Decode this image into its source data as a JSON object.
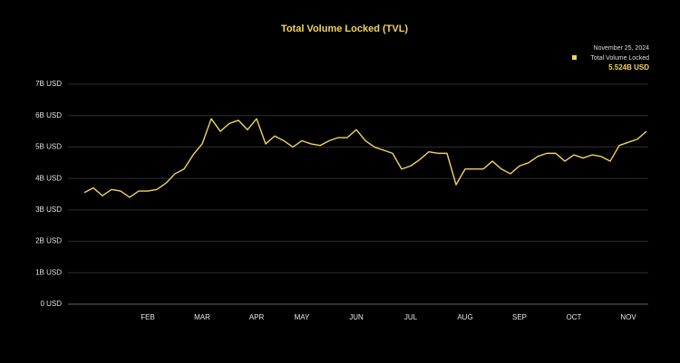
{
  "chart_data": {
    "type": "line",
    "title": "Total Volume Locked (TVL)",
    "legend_date": "November 25, 2024",
    "legend_value": "5.524B USD",
    "categories": [
      null,
      null,
      null,
      null,
      null,
      null,
      null,
      "FEB",
      null,
      null,
      null,
      null,
      null,
      "MAR",
      null,
      null,
      null,
      null,
      null,
      "APR",
      null,
      null,
      null,
      null,
      "MAY",
      null,
      null,
      null,
      null,
      null,
      "JUN",
      null,
      null,
      null,
      null,
      null,
      "JUL",
      null,
      null,
      null,
      null,
      null,
      "AUG",
      null,
      null,
      null,
      null,
      null,
      "SEP",
      null,
      null,
      null,
      null,
      null,
      "OCT",
      null,
      null,
      null,
      null,
      null,
      "NOV",
      null,
      null
    ],
    "series": [
      {
        "name": "Total Volume Locked",
        "color": "#f2d45c",
        "values": [
          3.55,
          3.7,
          3.45,
          3.65,
          3.6,
          3.4,
          3.6,
          3.6,
          3.65,
          3.85,
          4.15,
          4.3,
          4.75,
          5.1,
          5.9,
          5.5,
          5.75,
          5.85,
          5.55,
          5.9,
          5.1,
          5.35,
          5.2,
          5.0,
          5.2,
          5.1,
          5.05,
          5.2,
          5.3,
          5.3,
          5.55,
          5.2,
          5.0,
          4.9,
          4.8,
          4.3,
          4.4,
          4.6,
          4.85,
          4.8,
          4.8,
          3.8,
          4.3,
          4.3,
          4.3,
          4.55,
          4.3,
          4.15,
          4.4,
          4.5,
          4.7,
          4.8,
          4.8,
          4.55,
          4.75,
          4.65,
          4.75,
          4.7,
          4.55,
          5.05,
          5.15,
          5.25,
          5.5
        ]
      }
    ],
    "ylim": [
      0,
      7
    ],
    "yticks": [
      {
        "value": 0,
        "label": "0 USD"
      },
      {
        "value": 1,
        "label": "1B USD"
      },
      {
        "value": 2,
        "label": "2B USD"
      },
      {
        "value": 3,
        "label": "3B USD"
      },
      {
        "value": 4,
        "label": "4B USD"
      },
      {
        "value": 5,
        "label": "5B USD"
      },
      {
        "value": 6,
        "label": "6B USD"
      },
      {
        "value": 7,
        "label": "7B USD"
      }
    ],
    "grid": true
  }
}
